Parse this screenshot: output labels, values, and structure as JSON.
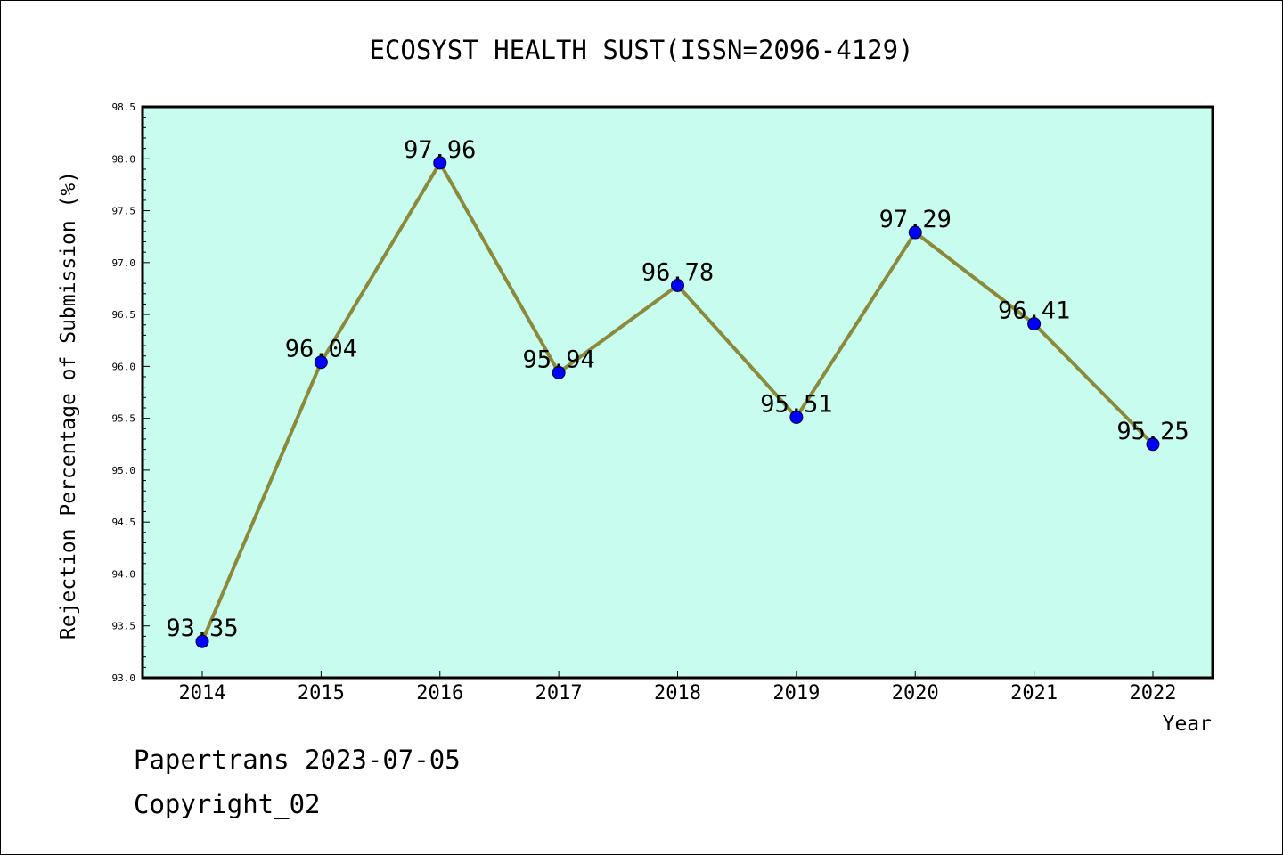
{
  "chart_data": {
    "type": "line",
    "title": "ECOSYST HEALTH SUST(ISSN=2096-4129)",
    "xlabel": "Year",
    "ylabel": "Rejection Percentage of Submission (%)",
    "categories": [
      "2014",
      "2015",
      "2016",
      "2017",
      "2018",
      "2019",
      "2020",
      "2021",
      "2022"
    ],
    "series": [
      {
        "values": [
          93.35,
          96.04,
          97.96,
          95.94,
          96.78,
          95.51,
          97.29,
          96.41,
          95.25
        ]
      }
    ],
    "data_labels": [
      "93.35",
      "96.04",
      "97.96",
      "95.94",
      "96.78",
      "95.51",
      "97.29",
      "96.41",
      "95.25"
    ],
    "ylim": [
      93.0,
      98.5
    ],
    "yticks": [
      "93.0",
      "93.5",
      "94.0",
      "94.5",
      "95.0",
      "95.5",
      "96.0",
      "96.5",
      "97.0",
      "97.5",
      "98.0",
      "98.5"
    ],
    "grid": false,
    "legend": "none",
    "colors": {
      "plot_background": "#c8fcee",
      "line": "#8b8a3a",
      "marker": "#0000ff"
    }
  },
  "footer": {
    "line1": "Papertrans 2023-07-05",
    "line2": "Copyright_02"
  }
}
